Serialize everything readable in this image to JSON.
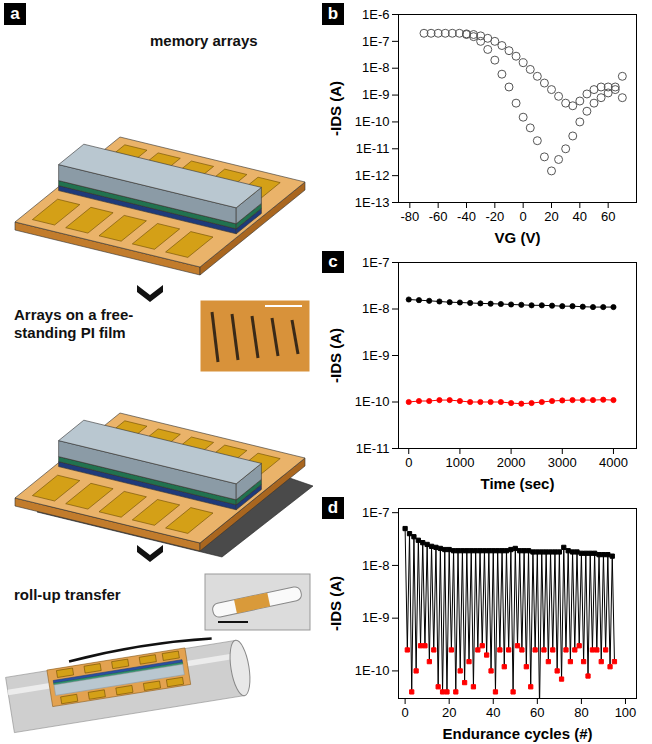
{
  "diagram": {
    "panel": "a",
    "steps": [
      "memory arrays",
      "Arrays on a free-standing PI film",
      "roll-up transfer"
    ]
  },
  "chart_data": [
    {
      "panel": "b",
      "type": "scatter",
      "marker": "circle-open",
      "color": "#555555",
      "log": "y",
      "xlabel": "VG (V)",
      "ylabel": "-IDS (A)",
      "xlim": [
        -88,
        80
      ],
      "ylim": [
        1e-13,
        1e-06
      ],
      "xticks": [
        -80,
        -60,
        -40,
        -20,
        0,
        20,
        40,
        60
      ],
      "yticks": [
        {
          "value": 1e-13,
          "label": "1E-13"
        },
        {
          "value": 1e-12,
          "label": "1E-12"
        },
        {
          "value": 1e-11,
          "label": "1E-11"
        },
        {
          "value": 1e-10,
          "label": "1E-10"
        },
        {
          "value": 1e-09,
          "label": "1E-9"
        },
        {
          "value": 1e-08,
          "label": "1E-8"
        },
        {
          "value": 1e-07,
          "label": "1E-7"
        },
        {
          "value": 1e-06,
          "label": "1E-6"
        }
      ],
      "x": [
        -70,
        -65,
        -60,
        -55,
        -50,
        -45,
        -40,
        -35,
        -30,
        -25,
        -20,
        -15,
        -10,
        -5,
        0,
        5,
        10,
        15,
        20,
        25,
        30,
        35,
        40,
        45,
        50,
        55,
        60,
        65,
        70,
        70,
        65,
        60,
        55,
        50,
        45,
        40,
        35,
        30,
        25,
        20,
        15,
        10,
        5,
        0,
        -5,
        -10,
        -15,
        -20,
        -25,
        -30,
        -35,
        -40
      ],
      "values": [
        2e-07,
        2e-07,
        2e-07,
        2e-07,
        2e-07,
        2e-07,
        1.9e-07,
        1.8e-07,
        1.6e-07,
        1.3e-07,
        1e-07,
        7e-08,
        4.5e-08,
        2.8e-08,
        1.6e-08,
        9e-09,
        5e-09,
        2.8e-09,
        1.6e-09,
        9e-10,
        5e-10,
        4e-10,
        6e-10,
        1.1e-09,
        1.6e-09,
        2e-09,
        2e-09,
        1.6e-09,
        8e-10,
        5e-09,
        2e-09,
        1.2e-09,
        8e-10,
        5e-10,
        2.5e-10,
        1e-10,
        3e-11,
        1e-11,
        4e-12,
        1.5e-12,
        5e-12,
        2e-11,
        6e-11,
        1.5e-10,
        5e-10,
        2e-09,
        6e-09,
        2e-08,
        5e-08,
        1e-07,
        1.5e-07,
        1.8e-07
      ]
    },
    {
      "panel": "c",
      "type": "line",
      "marker": "circle",
      "log": "y",
      "xlabel": "Time (sec)",
      "ylabel": "-IDS (A)",
      "xlim": [
        -200,
        4450
      ],
      "ylim": [
        1e-11,
        1e-07
      ],
      "xticks": [
        0,
        1000,
        2000,
        3000,
        4000
      ],
      "yticks": [
        {
          "value": 1e-11,
          "label": "1E-11"
        },
        {
          "value": 1e-10,
          "label": "1E-10"
        },
        {
          "value": 1e-09,
          "label": "1E-9"
        },
        {
          "value": 1e-08,
          "label": "1E-8"
        },
        {
          "value": 1e-07,
          "label": "1E-7"
        }
      ],
      "x": [
        0,
        200,
        400,
        600,
        800,
        1000,
        1200,
        1400,
        1600,
        1800,
        2000,
        2200,
        2400,
        2600,
        2800,
        3000,
        3200,
        3400,
        3600,
        3800,
        4000
      ],
      "series": [
        {
          "color": "#000000",
          "values": [
            1.6e-08,
            1.55e-08,
            1.5e-08,
            1.45e-08,
            1.4e-08,
            1.38e-08,
            1.35e-08,
            1.32e-08,
            1.3e-08,
            1.28e-08,
            1.25e-08,
            1.23e-08,
            1.2e-08,
            1.2e-08,
            1.18e-08,
            1.15e-08,
            1.15e-08,
            1.12e-08,
            1.1e-08,
            1.1e-08,
            1.1e-08
          ]
        },
        {
          "color": "#ff0000",
          "values": [
            1e-10,
            1.05e-10,
            1.05e-10,
            1.1e-10,
            1.1e-10,
            1.05e-10,
            1e-10,
            1e-10,
            1e-10,
            1e-10,
            9.5e-11,
            9.2e-11,
            9.5e-11,
            1e-10,
            1.05e-10,
            1.08e-10,
            1.1e-10,
            1.1e-10,
            1.1e-10,
            1.12e-10,
            1.1e-10
          ]
        }
      ]
    },
    {
      "panel": "d",
      "type": "line",
      "marker": "square",
      "color": "#000000",
      "log": "y",
      "xlabel": "Endurance cycles (#)",
      "ylabel": "-IDS (A)",
      "xlim": [
        -3,
        105
      ],
      "ylim": [
        3e-11,
        1.2e-07
      ],
      "xticks": [
        0,
        20,
        40,
        60,
        80,
        100
      ],
      "yticks": [
        {
          "value": 1e-10,
          "label": "1E-10"
        },
        {
          "value": 1e-09,
          "label": "1E-9"
        },
        {
          "value": 1e-08,
          "label": "1E-8"
        },
        {
          "value": 1e-07,
          "label": "1E-7"
        }
      ],
      "x": [
        0,
        1,
        2,
        3,
        4,
        5,
        6,
        7,
        8,
        9,
        10,
        11,
        12,
        13,
        14,
        15,
        16,
        17,
        18,
        19,
        20,
        21,
        22,
        23,
        24,
        25,
        26,
        27,
        28,
        29,
        30,
        31,
        32,
        33,
        34,
        35,
        36,
        37,
        38,
        39,
        40,
        41,
        42,
        43,
        44,
        45,
        46,
        47,
        48,
        49,
        50,
        51,
        52,
        53,
        54,
        55,
        56,
        57,
        58,
        59,
        60,
        61,
        62,
        63,
        64,
        65,
        66,
        67,
        68,
        69,
        70,
        71,
        72,
        73,
        74,
        75,
        76,
        77,
        78,
        79,
        80,
        81,
        82,
        83,
        84,
        85,
        86,
        87,
        88,
        89,
        90,
        91,
        92,
        93,
        94,
        95
      ],
      "values": [
        5e-08,
        2.5e-10,
        4e-08,
        4e-11,
        3.5e-08,
        1e-10,
        3e-08,
        3e-10,
        2.7e-08,
        3e-10,
        2.5e-08,
        1.5e-10,
        2.3e-08,
        2.5e-10,
        2.2e-08,
        5e-11,
        2.1e-08,
        4e-11,
        2e-08,
        4e-11,
        2e-08,
        2.5e-10,
        1.9e-08,
        4e-11,
        1.9e-08,
        1e-10,
        1.9e-08,
        6e-11,
        1.9e-08,
        1.5e-10,
        1.9e-08,
        5e-11,
        1.9e-08,
        2.5e-10,
        1.9e-08,
        3e-10,
        1.9e-08,
        2e-10,
        1.9e-08,
        1e-10,
        1.9e-08,
        4e-11,
        1.9e-08,
        2.5e-10,
        1.9e-08,
        1.2e-10,
        1.9e-08,
        2.5e-10,
        2e-08,
        4e-11,
        2.1e-08,
        3e-10,
        1.9e-08,
        2.5e-10,
        1.9e-08,
        1.2e-10,
        1.9e-08,
        5e-11,
        1.8e-08,
        2.5e-10,
        1.8e-08,
        2e-11,
        1.8e-08,
        2.5e-10,
        1.8e-08,
        1.5e-10,
        1.8e-08,
        2.5e-10,
        1.8e-08,
        1e-10,
        1.8e-08,
        7e-11,
        2.2e-08,
        2.5e-10,
        1.9e-08,
        1.5e-10,
        1.8e-08,
        2.5e-10,
        1.8e-08,
        3e-10,
        1.7e-08,
        1.5e-10,
        1.7e-08,
        8e-11,
        1.7e-08,
        2.5e-10,
        1.7e-08,
        2.5e-10,
        1.6e-08,
        1.5e-10,
        1.6e-08,
        2.5e-10,
        1.6e-08,
        1.2e-10,
        1.5e-08,
        1.5e-10
      ],
      "colors": [
        "#000000",
        "#ff0000",
        "#000000",
        "#ff0000",
        "#000000",
        "#ff0000",
        "#000000",
        "#ff0000",
        "#000000",
        "#ff0000",
        "#000000",
        "#ff0000",
        "#000000",
        "#ff0000",
        "#000000",
        "#ff0000",
        "#000000",
        "#ff0000",
        "#000000",
        "#ff0000",
        "#000000",
        "#ff0000",
        "#000000",
        "#ff0000",
        "#000000",
        "#ff0000",
        "#000000",
        "#ff0000",
        "#000000",
        "#ff0000",
        "#000000",
        "#ff0000",
        "#000000",
        "#ff0000",
        "#000000",
        "#ff0000",
        "#000000",
        "#ff0000",
        "#000000",
        "#ff0000",
        "#000000",
        "#ff0000",
        "#000000",
        "#ff0000",
        "#000000",
        "#ff0000",
        "#000000",
        "#ff0000",
        "#000000",
        "#ff0000",
        "#000000",
        "#ff0000",
        "#000000",
        "#ff0000",
        "#000000",
        "#ff0000",
        "#000000",
        "#ff0000",
        "#000000",
        "#ff0000",
        "#000000",
        "#ff0000",
        "#000000",
        "#ff0000",
        "#000000",
        "#ff0000",
        "#000000",
        "#ff0000",
        "#000000",
        "#ff0000",
        "#000000",
        "#ff0000",
        "#000000",
        "#ff0000",
        "#000000",
        "#ff0000",
        "#000000",
        "#ff0000",
        "#000000",
        "#ff0000",
        "#000000",
        "#ff0000",
        "#000000",
        "#ff0000",
        "#000000",
        "#ff0000",
        "#000000",
        "#ff0000",
        "#000000",
        "#ff0000",
        "#000000",
        "#ff0000",
        "#000000",
        "#ff0000",
        "#000000",
        "#ff0000"
      ]
    }
  ]
}
